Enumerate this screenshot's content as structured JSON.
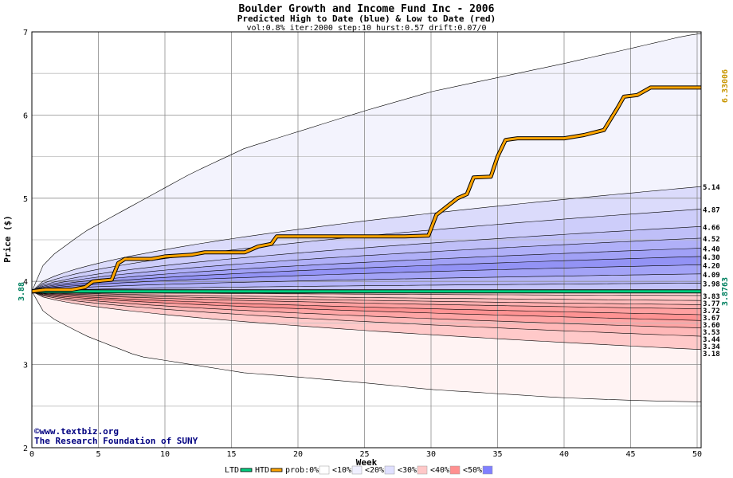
{
  "chart_data": {
    "type": "area",
    "title": "Boulder Growth and Income Fund Inc - 2006",
    "subtitle": "Predicted High to Date (blue) &  Low to Date (red)",
    "params": "vol:0.8% iter:2000 step:10 hurst:0.57 drift:0.07/0",
    "xlabel": "Week",
    "ylabel": "Price ($)",
    "xlim": [
      0,
      50.3
    ],
    "ylim": [
      2,
      7
    ],
    "x_ticks": [
      0,
      5,
      10,
      15,
      20,
      25,
      30,
      35,
      40,
      45,
      50
    ],
    "y_ticks": [
      2,
      3,
      4,
      5,
      6,
      7
    ],
    "grid": true,
    "start_price": 3.88,
    "start_label": "3.88",
    "htd_label": "6.33006",
    "ltd_label": "3.8763",
    "high_band_labels": [
      "5.14",
      "4.87",
      "4.66",
      "4.52",
      "4.40",
      "4.30",
      "4.20",
      "4.09",
      "3.98"
    ],
    "high_band_values": [
      5.14,
      4.87,
      4.66,
      4.52,
      4.4,
      4.3,
      4.2,
      4.09,
      3.98
    ],
    "low_band_labels": [
      "3.83",
      "3.77",
      "3.72",
      "3.67",
      "3.60",
      "3.53",
      "3.44",
      "3.34",
      "3.18"
    ],
    "low_band_values": [
      3.83,
      3.77,
      3.72,
      3.67,
      3.6,
      3.53,
      3.44,
      3.34,
      3.18
    ],
    "envelope_high": {
      "x": [
        0,
        1,
        4,
        8,
        12,
        16,
        20,
        25,
        30,
        35,
        40,
        45,
        49,
        50.3
      ],
      "values": [
        3.88,
        4.25,
        4.6,
        4.95,
        5.3,
        5.6,
        5.8,
        6.05,
        6.28,
        6.45,
        6.62,
        6.8,
        6.95,
        6.98
      ]
    },
    "envelope_low": {
      "x": [
        0,
        1,
        4,
        8,
        12,
        16,
        20,
        25,
        30,
        35,
        40,
        45,
        50.3
      ],
      "values": [
        3.88,
        3.6,
        3.35,
        3.1,
        3.0,
        2.9,
        2.85,
        2.78,
        2.7,
        2.65,
        2.6,
        2.57,
        2.55
      ]
    },
    "series": [
      {
        "name": "HTD",
        "color": "#ffa500",
        "x": [
          0,
          1,
          3,
          4,
          4.6,
          6,
          6.5,
          7,
          9,
          10,
          12,
          13,
          16,
          17,
          18,
          18.4,
          22,
          25,
          28,
          29.8,
          30.4,
          31.2,
          32,
          32.7,
          33.2,
          34.5,
          35,
          35.6,
          36.5,
          38,
          40,
          41.5,
          43,
          43.5,
          44,
          44.5,
          45.5,
          46.5,
          48,
          50.3
        ],
        "values": [
          3.88,
          3.9,
          3.9,
          3.93,
          4.0,
          4.02,
          4.22,
          4.27,
          4.27,
          4.3,
          4.32,
          4.35,
          4.35,
          4.42,
          4.45,
          4.54,
          4.54,
          4.54,
          4.54,
          4.55,
          4.8,
          4.9,
          5.0,
          5.05,
          5.25,
          5.26,
          5.5,
          5.7,
          5.72,
          5.72,
          5.72,
          5.76,
          5.82,
          5.95,
          6.08,
          6.22,
          6.24,
          6.33,
          6.33,
          6.33
        ]
      },
      {
        "name": "LTD",
        "color": "#00d080",
        "x": [
          0,
          2,
          50.3
        ],
        "values": [
          3.88,
          3.88,
          3.88
        ]
      }
    ],
    "legend": {
      "placement": "bottom-center",
      "items": [
        "LTD",
        "HTD",
        "prob:0%",
        "<10%",
        "<20%",
        "<30%",
        "<40%",
        "<50%"
      ],
      "swatch_colors": [
        "#00d080",
        "#ffa500",
        "#ffffff",
        "#f0f0ff",
        "#e0e0ff",
        "#ffc8c8",
        "#ff9090",
        "#8080ff"
      ]
    },
    "colors": {
      "high_fill": "#5050f0",
      "low_fill": "#ff5a5a",
      "envelope_high_fill": "#f3f3fd",
      "envelope_low_fill": "#fff3f3",
      "htd_line": "#ffa500",
      "ltd_line": "#00d080",
      "htd_label": "#c89600",
      "ltd_label": "#008060",
      "credit": "#000080"
    }
  },
  "credit": {
    "site": "©www.textbiz.org",
    "org": "The Research Foundation of SUNY"
  }
}
